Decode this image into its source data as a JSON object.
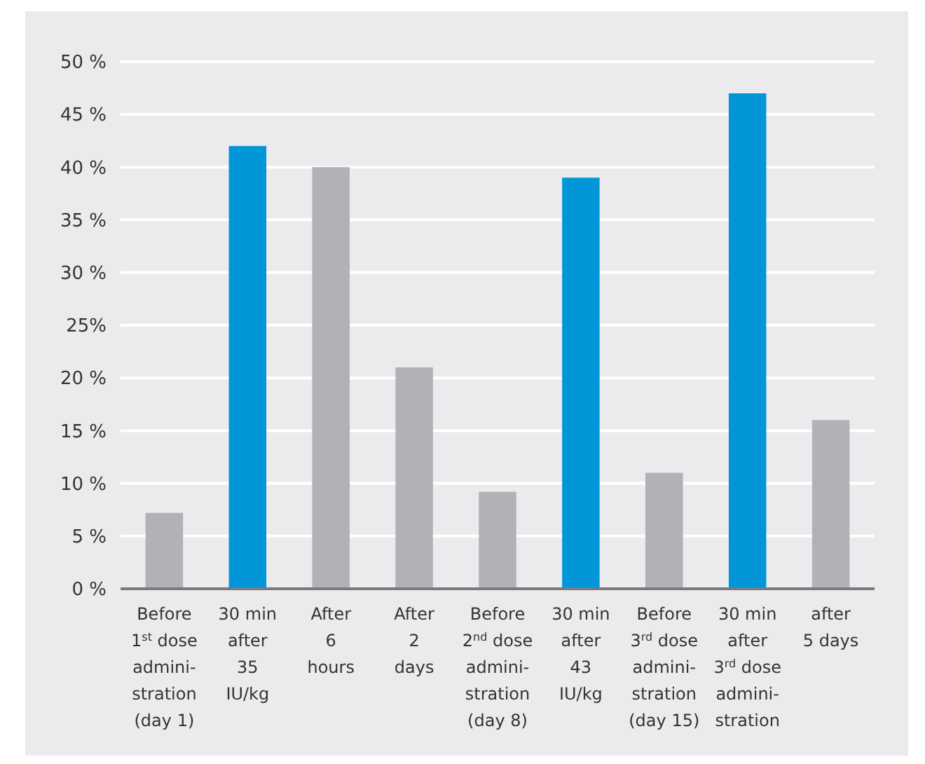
{
  "chart_data": {
    "type": "bar",
    "categories": [
      "Before\n1$^{st}$ dose\nadmini-\nstration\n(day 1)",
      "30 min\nafter\n35\nIU/kg",
      "After\n6\nhours",
      "After\n2\ndays",
      "Before\n2$^{nd}$ dose\nadmini-\nstration\n(day 8)",
      "30 min\nafter\n43\nIU/kg",
      "Before\n3$^{rd}$ dose\nadmini-\nstration\n(day 15)",
      "30 min\nafter\n3$^{rd}$ dose\nadmini-\nstration",
      "after\n5 days"
    ],
    "values": [
      7.2,
      42,
      40,
      21,
      9.2,
      39,
      11,
      47,
      16
    ],
    "colors": [
      "#b1b2b6",
      "#0096d8",
      "#b1b2b6",
      "#b1b2b6",
      "#b1b2b6",
      "#0096d8",
      "#b1b2b6",
      "#0096d8",
      "#b1b2b6"
    ],
    "ylim": [
      0,
      50
    ],
    "yticks": [
      {
        "value": 0,
        "label": "0 %"
      },
      {
        "value": 5,
        "label": "5 %"
      },
      {
        "value": 10,
        "label": "10 %"
      },
      {
        "value": 15,
        "label": "15 %"
      },
      {
        "value": 20,
        "label": "20 %"
      },
      {
        "value": 25,
        "label": "25%"
      },
      {
        "value": 30,
        "label": "30 %"
      },
      {
        "value": 35,
        "label": "35 %"
      },
      {
        "value": 40,
        "label": "40 %"
      },
      {
        "value": 45,
        "label": "45 %"
      },
      {
        "value": 50,
        "label": "50 %"
      }
    ],
    "grid": "y"
  }
}
